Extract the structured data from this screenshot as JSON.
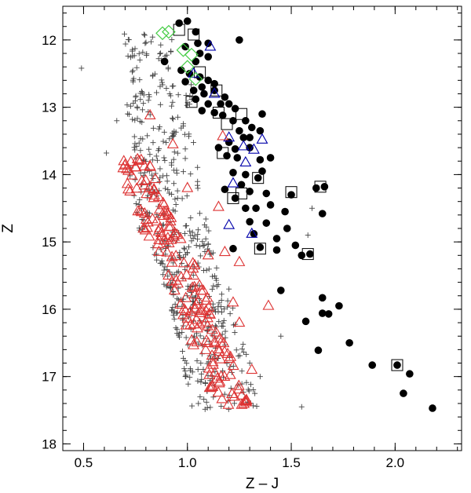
{
  "chart_data": {
    "type": "scatter",
    "xlabel": "Z – J",
    "ylabel": "Z",
    "xlim": [
      0.4,
      2.32
    ],
    "ylim": [
      18.1,
      11.5
    ],
    "y_inverted": true,
    "x_ticks": [
      0.5,
      1.0,
      1.5,
      2.0
    ],
    "x_tick_labels": [
      "0.5",
      "1.0",
      "1.5",
      "2.0"
    ],
    "y_ticks": [
      12,
      13,
      14,
      15,
      16,
      17,
      18
    ],
    "y_tick_labels": [
      "12",
      "13",
      "14",
      "15",
      "16",
      "17",
      "18"
    ],
    "grid": false,
    "legend": "none",
    "series": [
      {
        "marker": "plus",
        "color": "#444444",
        "note": "dense field population; region approximated by bands",
        "bands": [
          {
            "y": [
              11.9,
              12.9
            ],
            "x": [
              0.69,
              0.98
            ],
            "count": 70
          },
          {
            "y": [
              12.9,
              13.9
            ],
            "x": [
              0.7,
              1.02
            ],
            "count": 80
          },
          {
            "y": [
              13.9,
              14.9
            ],
            "x": [
              0.71,
              1.05
            ],
            "count": 95
          },
          {
            "y": [
              14.9,
              15.7
            ],
            "x": [
              0.82,
              1.12
            ],
            "count": 100
          },
          {
            "y": [
              15.7,
              16.5
            ],
            "x": [
              0.9,
              1.2
            ],
            "count": 100
          },
          {
            "y": [
              16.5,
              17.5
            ],
            "x": [
              0.96,
              1.28
            ],
            "count": 90
          }
        ],
        "outliers": [
          [
            0.49,
            12.42
          ],
          [
            0.61,
            13.68
          ],
          [
            0.66,
            13.2
          ],
          [
            1.2,
            15.7
          ],
          [
            1.3,
            16.8
          ],
          [
            1.35,
            17.0
          ],
          [
            1.55,
            17.45
          ],
          [
            1.45,
            16.4
          ],
          [
            1.58,
            14.9
          ],
          [
            1.6,
            14.5
          ],
          [
            1.22,
            13.2
          ]
        ]
      },
      {
        "marker": "filled-circle",
        "color": "#000000",
        "points": [
          [
            0.96,
            11.75
          ],
          [
            1.0,
            11.72
          ],
          [
            1.04,
            11.88
          ],
          [
            1.1,
            12.05
          ],
          [
            1.05,
            12.05
          ],
          [
            0.99,
            12.1
          ],
          [
            0.89,
            12.32
          ],
          [
            1.04,
            12.32
          ],
          [
            1.06,
            12.2
          ],
          [
            1.1,
            12.25
          ],
          [
            0.97,
            12.45
          ],
          [
            1.01,
            12.5
          ],
          [
            1.06,
            12.55
          ],
          [
            1.1,
            12.6
          ],
          [
            1.13,
            12.65
          ],
          [
            1.07,
            12.7
          ],
          [
            0.99,
            12.62
          ],
          [
            1.03,
            12.75
          ],
          [
            1.08,
            12.8
          ],
          [
            1.13,
            12.75
          ],
          [
            1.18,
            12.85
          ],
          [
            1.04,
            12.88
          ],
          [
            1.1,
            12.95
          ],
          [
            1.16,
            12.95
          ],
          [
            1.2,
            12.95
          ],
          [
            1.23,
            13.02
          ],
          [
            1.07,
            13.05
          ],
          [
            1.13,
            13.08
          ],
          [
            1.17,
            13.12
          ],
          [
            1.22,
            13.2
          ],
          [
            1.28,
            13.2
          ],
          [
            1.31,
            13.3
          ],
          [
            1.36,
            13.1
          ],
          [
            1.25,
            13.35
          ],
          [
            1.27,
            13.45
          ],
          [
            1.3,
            13.45
          ],
          [
            1.35,
            13.35
          ],
          [
            1.2,
            13.52
          ],
          [
            1.23,
            13.62
          ],
          [
            1.15,
            13.6
          ],
          [
            1.19,
            13.72
          ],
          [
            1.24,
            13.75
          ],
          [
            1.3,
            13.6
          ],
          [
            1.35,
            13.78
          ],
          [
            1.4,
            13.75
          ],
          [
            1.36,
            13.95
          ],
          [
            1.22,
            13.97
          ],
          [
            1.28,
            14.0
          ],
          [
            1.34,
            14.05
          ],
          [
            1.26,
            14.15
          ],
          [
            1.18,
            14.22
          ],
          [
            1.23,
            14.35
          ],
          [
            1.3,
            14.25
          ],
          [
            1.38,
            14.28
          ],
          [
            1.5,
            14.3
          ],
          [
            1.62,
            14.2
          ],
          [
            1.66,
            14.18
          ],
          [
            1.28,
            14.5
          ],
          [
            1.33,
            14.5
          ],
          [
            1.4,
            14.45
          ],
          [
            1.47,
            14.55
          ],
          [
            1.65,
            14.58
          ],
          [
            1.3,
            14.7
          ],
          [
            1.38,
            14.72
          ],
          [
            1.48,
            14.8
          ],
          [
            1.32,
            14.88
          ],
          [
            1.43,
            14.95
          ],
          [
            1.22,
            15.1
          ],
          [
            1.35,
            15.08
          ],
          [
            1.43,
            15.12
          ],
          [
            1.52,
            15.05
          ],
          [
            1.55,
            15.2
          ],
          [
            1.59,
            15.18
          ],
          [
            1.45,
            15.72
          ],
          [
            1.65,
            15.83
          ],
          [
            1.57,
            16.18
          ],
          [
            1.65,
            16.06
          ],
          [
            1.68,
            16.07
          ],
          [
            1.73,
            15.95
          ],
          [
            1.78,
            16.5
          ],
          [
            1.63,
            16.61
          ],
          [
            1.89,
            16.83
          ],
          [
            2.01,
            16.83
          ],
          [
            2.07,
            16.96
          ],
          [
            2.04,
            17.25
          ],
          [
            2.18,
            17.47
          ],
          [
            1.25,
            12.0
          ]
        ]
      },
      {
        "marker": "open-square",
        "color": "#000000",
        "points": [
          [
            1.03,
            11.92
          ],
          [
            0.96,
            11.85
          ],
          [
            1.06,
            12.48
          ],
          [
            1.02,
            12.92
          ],
          [
            1.14,
            12.75
          ],
          [
            1.15,
            13.08
          ],
          [
            1.26,
            13.1
          ],
          [
            1.19,
            13.25
          ],
          [
            1.17,
            13.68
          ],
          [
            1.34,
            14.05
          ],
          [
            1.26,
            14.28
          ],
          [
            1.5,
            14.26
          ],
          [
            1.64,
            14.18
          ],
          [
            1.22,
            14.35
          ],
          [
            1.35,
            15.1
          ],
          [
            1.58,
            15.18
          ],
          [
            2.01,
            16.83
          ]
        ]
      },
      {
        "marker": "open-triangle",
        "color": "#0000aa",
        "points": [
          [
            1.11,
            12.1
          ],
          [
            1.03,
            12.5
          ],
          [
            1.13,
            12.8
          ],
          [
            1.2,
            13.45
          ],
          [
            1.27,
            13.58
          ],
          [
            1.36,
            13.48
          ],
          [
            1.32,
            13.63
          ],
          [
            1.28,
            13.82
          ],
          [
            1.22,
            14.13
          ],
          [
            1.31,
            14.88
          ],
          [
            1.2,
            14.75
          ]
        ]
      },
      {
        "marker": "open-triangle",
        "color": "#dd3333",
        "note": "red open triangles along the main sequence",
        "band": [
          [
            0.74,
            13.7
          ],
          [
            0.8,
            14.3
          ],
          [
            0.86,
            14.8
          ],
          [
            0.96,
            15.3
          ],
          [
            1.02,
            15.8
          ],
          [
            1.08,
            16.3
          ],
          [
            1.15,
            16.9
          ],
          [
            1.22,
            17.45
          ]
        ],
        "spread": 0.08,
        "count": 170,
        "extra": [
          [
            0.82,
            13.12
          ],
          [
            1.03,
            15.5
          ],
          [
            1.1,
            15.2
          ],
          [
            1.18,
            15.15
          ],
          [
            1.25,
            15.3
          ],
          [
            1.22,
            15.9
          ],
          [
            1.25,
            16.2
          ],
          [
            1.16,
            16.5
          ],
          [
            1.31,
            16.9
          ],
          [
            1.39,
            15.95
          ],
          [
            1.15,
            14.48
          ],
          [
            1.17,
            13.43
          ],
          [
            1.0,
            14.2
          ],
          [
            0.93,
            13.55
          ]
        ]
      },
      {
        "marker": "open-diamond",
        "color": "#44cc44",
        "points": [
          [
            0.88,
            11.9
          ],
          [
            0.91,
            11.88
          ],
          [
            0.98,
            12.15
          ],
          [
            1.02,
            12.22
          ],
          [
            1.0,
            12.4
          ],
          [
            1.04,
            12.58
          ]
        ]
      }
    ]
  }
}
